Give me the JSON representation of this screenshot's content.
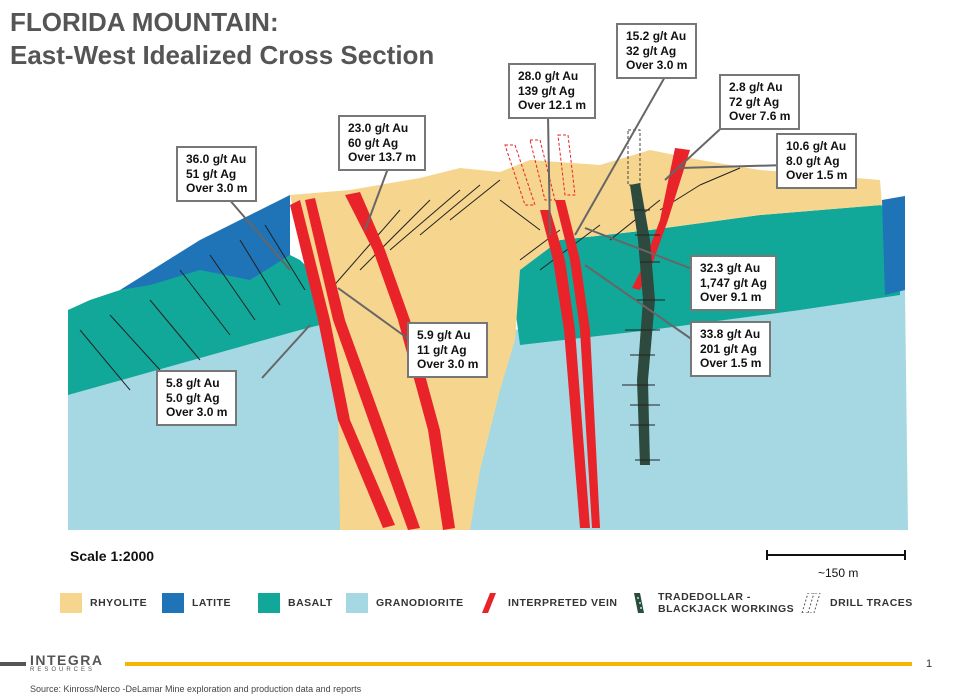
{
  "header": {
    "title_line1": "FLORIDA MOUNTAIN:",
    "title_line2": "East-West Idealized Cross Section"
  },
  "callouts": [
    {
      "id": "c1",
      "au": "36.0 g/t Au",
      "ag": "51 g/t Ag",
      "len": "Over 3.0 m"
    },
    {
      "id": "c2",
      "au": "23.0 g/t Au",
      "ag": "60 g/t Ag",
      "len": "Over 13.7 m"
    },
    {
      "id": "c3",
      "au": "28.0 g/t Au",
      "ag": "139 g/t Ag",
      "len": "Over 12.1 m"
    },
    {
      "id": "c4",
      "au": "15.2 g/t Au",
      "ag": "32 g/t Ag",
      "len": "Over 3.0 m"
    },
    {
      "id": "c5",
      "au": "2.8 g/t Au",
      "ag": "72 g/t Ag",
      "len": "Over 7.6 m"
    },
    {
      "id": "c6",
      "au": "10.6 g/t Au",
      "ag": "8.0 g/t Ag",
      "len": "Over 1.5 m"
    },
    {
      "id": "c7",
      "au": "32.3 g/t Au",
      "ag": "1,747 g/t Ag",
      "len": "Over 9.1 m"
    },
    {
      "id": "c8",
      "au": "33.8 g/t Au",
      "ag": "201 g/t Ag",
      "len": "Over 1.5 m"
    },
    {
      "id": "c9",
      "au": "5.9 g/t Au",
      "ag": "11 g/t Ag",
      "len": "Over 3.0 m"
    },
    {
      "id": "c10",
      "au": "5.8 g/t Au",
      "ag": "5.0 g/t Ag",
      "len": "Over 3.0 m"
    }
  ],
  "scale": {
    "label": "Scale 1:2000",
    "distance": "~150 m"
  },
  "legend": [
    {
      "key": "rhyolite",
      "label": "RHYOLITE",
      "color": "#f6d58f"
    },
    {
      "key": "latite",
      "label": "LATITE",
      "color": "#1f73b7"
    },
    {
      "key": "basalt",
      "label": "BASALT",
      "color": "#11a89a"
    },
    {
      "key": "granodiorite",
      "label": "GRANODIORITE",
      "color": "#a5d8e2"
    },
    {
      "key": "vein",
      "label": "INTERPRETED VEIN",
      "color": "#e8232a"
    },
    {
      "key": "workings",
      "label_line1": "TRADEDOLLAR -",
      "label_line2": "BLACKJACK WORKINGS",
      "color": "#2e4a3e"
    },
    {
      "key": "drill",
      "label": "DRILL TRACES",
      "color": "#555555"
    }
  ],
  "footer": {
    "logo": "INTEGRA",
    "logo_sub": "RESOURCES",
    "page_number": "1",
    "source": "Source: Kinross/Nerco -DeLamar Mine exploration and production data and reports"
  }
}
